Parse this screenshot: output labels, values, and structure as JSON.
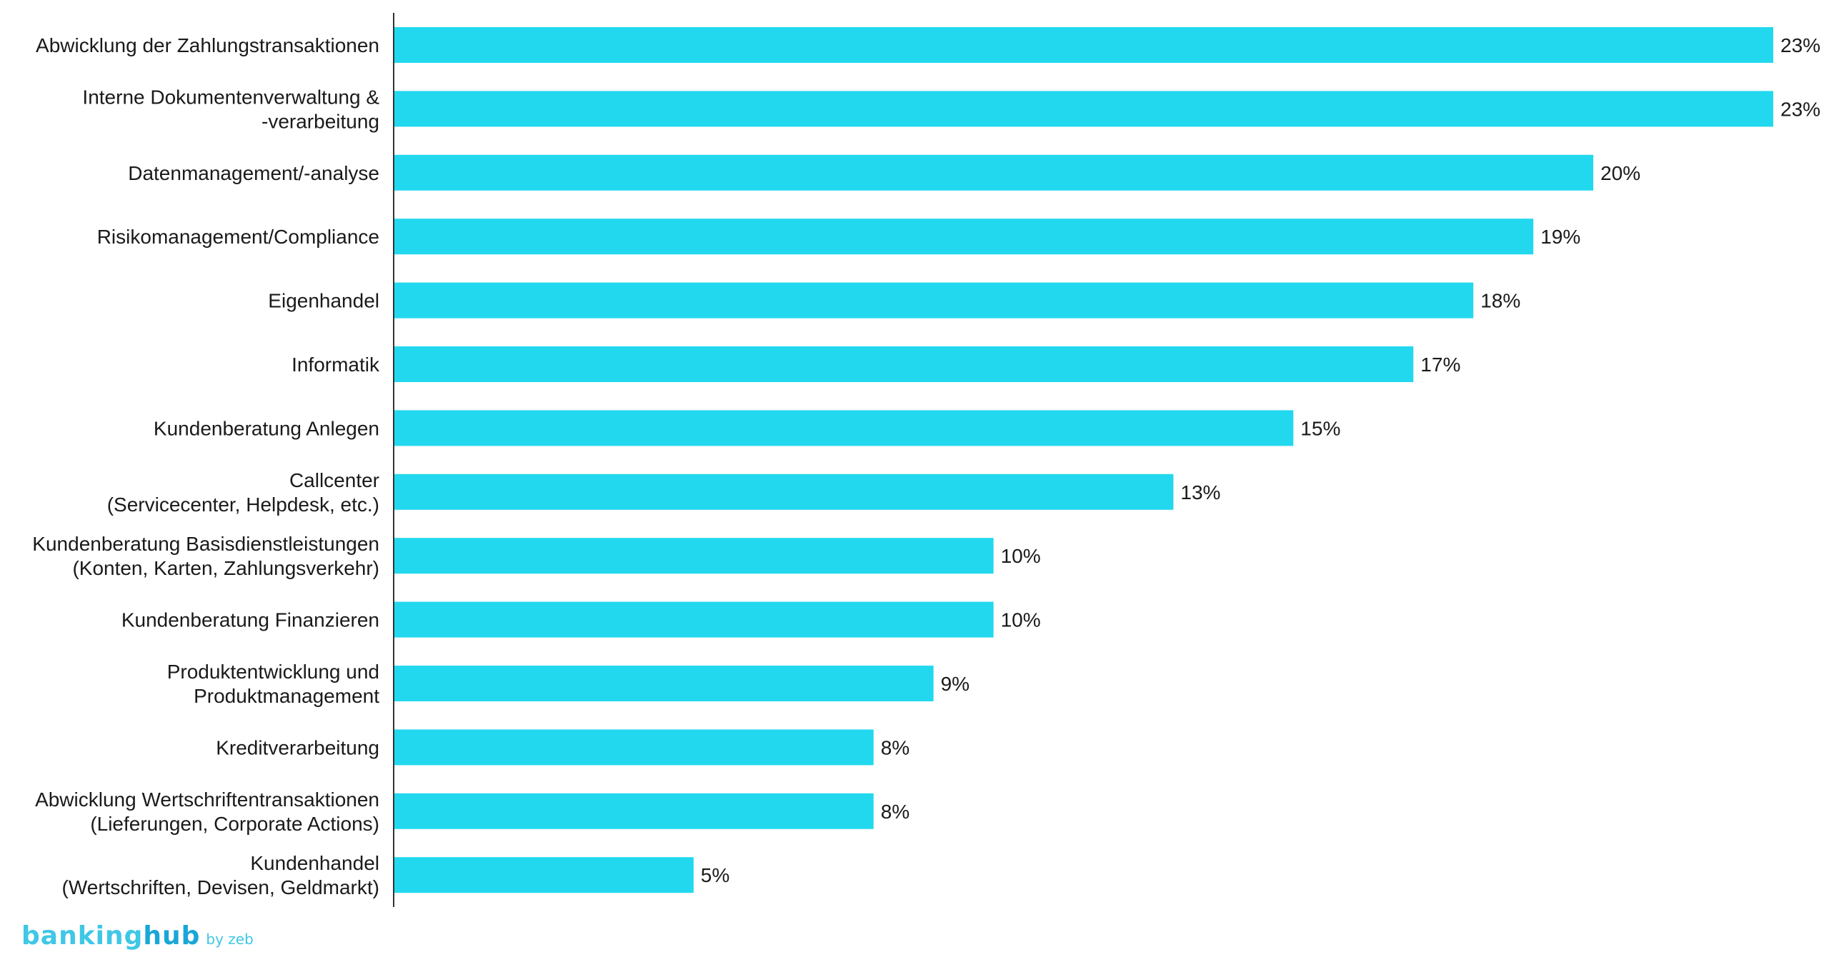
{
  "colors": {
    "bar": "#22d8ee",
    "axis": "#333333",
    "text": "#1a1a1a"
  },
  "chart_data": {
    "type": "bar",
    "orientation": "horizontal",
    "categories": [
      [
        "Abwicklung der Zahlungstransaktionen"
      ],
      [
        "Interne Dokumentenverwaltung &",
        "-verarbeitung"
      ],
      [
        "Datenmanagement/-analyse"
      ],
      [
        "Risikomanagement/Compliance"
      ],
      [
        "Eigenhandel"
      ],
      [
        "Informatik"
      ],
      [
        "Kundenberatung Anlegen"
      ],
      [
        "Callcenter",
        "(Servicecenter, Helpdesk, etc.)"
      ],
      [
        "Kundenberatung Basisdienstleistungen",
        "(Konten, Karten, Zahlungsverkehr)"
      ],
      [
        "Kundenberatung Finanzieren"
      ],
      [
        "Produktentwicklung und",
        "Produktmanagement"
      ],
      [
        "Kreditverarbeitung"
      ],
      [
        "Abwicklung Wertschriftentransaktionen",
        "(Lieferungen, Corporate Actions)"
      ],
      [
        "Kundenhandel",
        "(Wertschriften, Devisen, Geldmarkt)"
      ]
    ],
    "values": [
      23,
      23,
      20,
      19,
      18,
      17,
      15,
      13,
      10,
      10,
      9,
      8,
      8,
      5
    ],
    "value_labels": [
      "23%",
      "23%",
      "20%",
      "19%",
      "18%",
      "17%",
      "15%",
      "13%",
      "10%",
      "10%",
      "9%",
      "8%",
      "8%",
      "5%"
    ],
    "xlim": [
      0,
      23
    ],
    "grid": false,
    "legend": "none"
  },
  "branding": {
    "logo_banking": "banking",
    "logo_hub": "hub",
    "logo_sub": "by zeb"
  }
}
